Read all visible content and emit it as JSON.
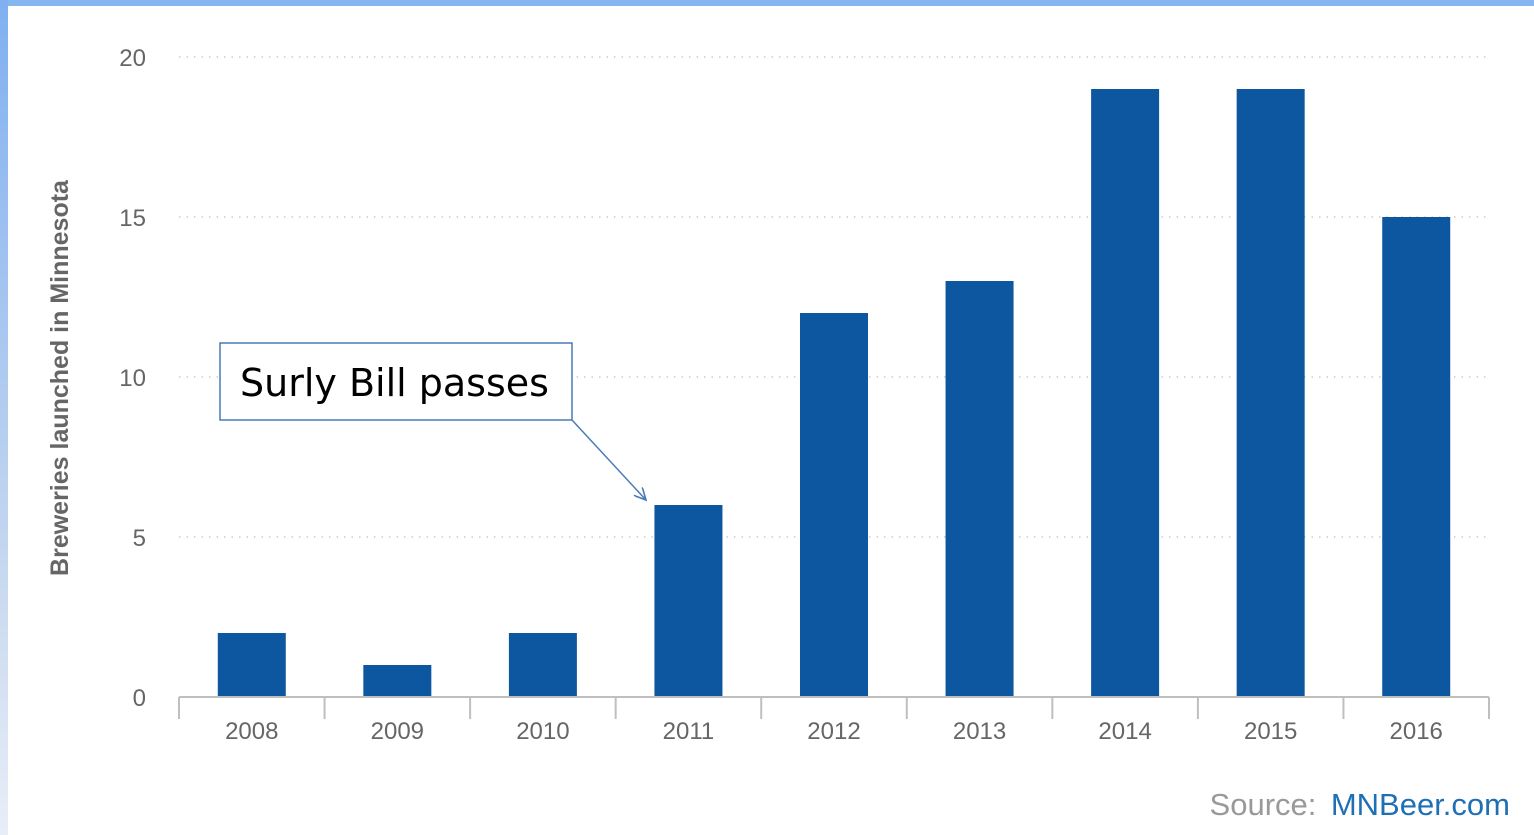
{
  "chart_data": {
    "type": "bar",
    "categories": [
      "2008",
      "2009",
      "2010",
      "2011",
      "2012",
      "2013",
      "2014",
      "2015",
      "2016"
    ],
    "values": [
      2,
      1,
      2,
      6,
      12,
      13,
      19,
      19,
      15
    ],
    "title": "",
    "xlabel": "",
    "ylabel": "Breweries launched in Minnesota",
    "ylim": [
      0,
      20
    ],
    "yticks": [
      0,
      5,
      10,
      15,
      20
    ],
    "grid": "horizontal dotted",
    "bar_color": "#0d56a0",
    "annotation": {
      "text": "Surly Bill passes",
      "target_category": "2011"
    },
    "source": {
      "prefix": "Source:",
      "link": "MNBeer.com"
    }
  }
}
